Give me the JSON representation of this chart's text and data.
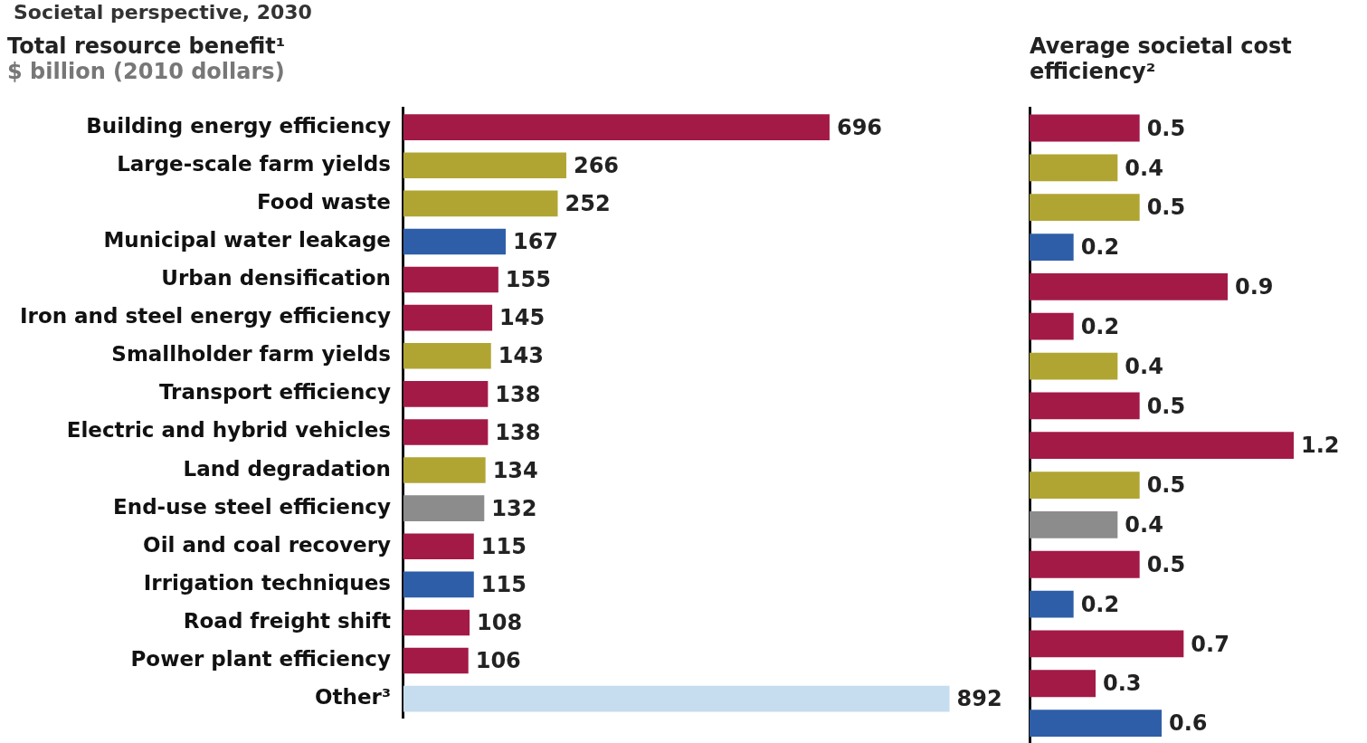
{
  "chart_data": [
    {
      "type": "bar",
      "orientation": "horizontal",
      "title": "Total resource benefit¹",
      "subtitle": "$ billion (2010 dollars)",
      "annotations": [
        "Societal perspective, 2030"
      ],
      "categories": [
        "Building energy efficiency",
        "Large-scale farm yields",
        "Food waste",
        "Municipal water leakage",
        "Urban densification",
        "Iron and steel energy efficiency",
        "Smallholder farm yields",
        "Transport efficiency",
        "Electric and hybrid vehicles",
        "Land degradation",
        "End-use steel efficiency",
        "Oil and coal recovery",
        "Irrigation techniques",
        "Road freight shift",
        "Power plant efficiency",
        "Other³"
      ],
      "values": [
        696,
        266,
        252,
        167,
        155,
        145,
        143,
        138,
        138,
        134,
        132,
        115,
        115,
        108,
        106,
        892
      ],
      "colors": [
        "#a31a47",
        "#b0a533",
        "#b0a533",
        "#2e5ea8",
        "#a31a47",
        "#a31a47",
        "#b0a533",
        "#a31a47",
        "#a31a47",
        "#b0a533",
        "#8c8c8c",
        "#a31a47",
        "#2e5ea8",
        "#a31a47",
        "#a31a47",
        "#c6dcef"
      ],
      "data_labels": true,
      "tick_labels": "y"
    },
    {
      "type": "bar",
      "orientation": "horizontal",
      "title": "Average societal cost efficiency²",
      "categories": [
        null,
        null,
        null,
        null,
        null,
        null,
        null,
        null,
        null,
        null,
        null,
        null,
        null,
        null,
        null,
        null
      ],
      "values": [
        0.5,
        0.4,
        0.5,
        0.2,
        0.9,
        0.2,
        0.4,
        0.5,
        1.2,
        0.5,
        0.4,
        0.5,
        0.2,
        0.7,
        0.3,
        0.6
      ],
      "colors": [
        "#a31a47",
        "#b0a533",
        "#b0a533",
        "#2e5ea8",
        "#a31a47",
        "#a31a47",
        "#b0a533",
        "#a31a47",
        "#a31a47",
        "#b0a533",
        "#8c8c8c",
        "#a31a47",
        "#2e5ea8",
        "#a31a47",
        "#a31a47",
        "#2e5ea8"
      ],
      "data_labels": true,
      "tick_labels": false
    }
  ]
}
